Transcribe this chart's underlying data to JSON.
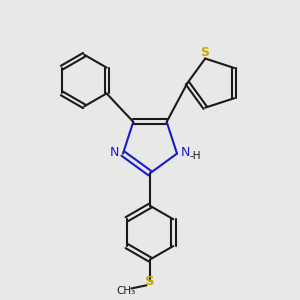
{
  "background_color": "#e8e8e8",
  "bond_color": "#1a1a1a",
  "nitrogen_color": "#1a1acc",
  "sulfur_color": "#c8a800",
  "sulfur_color2": "#888888",
  "bond_lw": 1.5,
  "dbl_sep": 0.055,
  "figsize": [
    3.0,
    3.0
  ],
  "dpi": 100,
  "xlim": [
    -0.5,
    3.8
  ],
  "ylim": [
    -3.2,
    2.5
  ]
}
